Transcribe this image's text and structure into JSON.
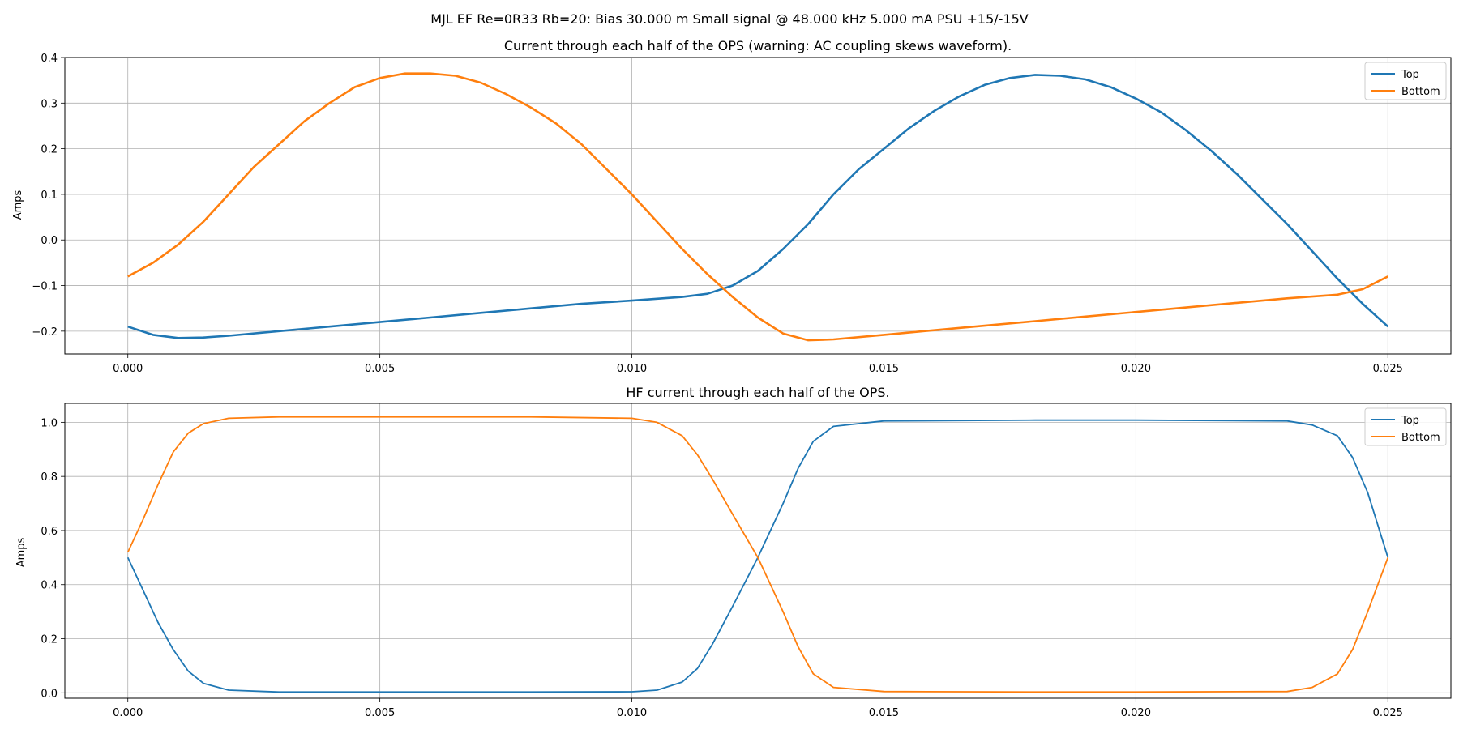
{
  "figure": {
    "suptitle": "MJL EF Re=0R33 Rb=20: Bias 30.000 m Small signal @ 48.000 kHz 5.000 mA PSU +15/-15V"
  },
  "chart_data": [
    {
      "type": "line",
      "title": "Current through each half of the OPS (warning: AC coupling skews waveform).",
      "xlabel": "",
      "ylabel": "Amps",
      "xlim": [
        -0.00125,
        0.02625
      ],
      "ylim": [
        -0.25,
        0.4
      ],
      "xticks": [
        "0.000",
        "0.005",
        "0.010",
        "0.015",
        "0.020",
        "0.025"
      ],
      "yticks": [
        "−0.2",
        "−0.1",
        "0.0",
        "0.1",
        "0.2",
        "0.3",
        "0.4"
      ],
      "grid": true,
      "legend": "top-right",
      "series": [
        {
          "name": "Top",
          "color": "#1f77b4",
          "x": [
            0.0,
            0.0005,
            0.001,
            0.0015,
            0.002,
            0.003,
            0.004,
            0.005,
            0.006,
            0.007,
            0.008,
            0.009,
            0.01,
            0.011,
            0.0115,
            0.012,
            0.0125,
            0.013,
            0.0135,
            0.014,
            0.0145,
            0.015,
            0.0155,
            0.016,
            0.0165,
            0.017,
            0.0175,
            0.018,
            0.0185,
            0.019,
            0.0195,
            0.02,
            0.0205,
            0.021,
            0.0215,
            0.022,
            0.0225,
            0.023,
            0.0235,
            0.024,
            0.0245,
            0.025
          ],
          "y": [
            -0.19,
            -0.208,
            -0.215,
            -0.214,
            -0.21,
            -0.2,
            -0.19,
            -0.18,
            -0.17,
            -0.16,
            -0.15,
            -0.14,
            -0.133,
            -0.125,
            -0.118,
            -0.1,
            -0.068,
            -0.02,
            0.035,
            0.1,
            0.155,
            0.2,
            0.245,
            0.283,
            0.315,
            0.34,
            0.355,
            0.362,
            0.36,
            0.352,
            0.335,
            0.31,
            0.28,
            0.24,
            0.195,
            0.145,
            0.09,
            0.035,
            -0.025,
            -0.085,
            -0.14,
            -0.19
          ]
        },
        {
          "name": "Bottom",
          "color": "#ff7f0e",
          "x": [
            0.0,
            0.0005,
            0.001,
            0.0015,
            0.002,
            0.0025,
            0.003,
            0.0035,
            0.004,
            0.0045,
            0.005,
            0.0055,
            0.006,
            0.0065,
            0.007,
            0.0075,
            0.008,
            0.0085,
            0.009,
            0.0095,
            0.01,
            0.0105,
            0.011,
            0.0115,
            0.012,
            0.0125,
            0.013,
            0.0135,
            0.014,
            0.015,
            0.016,
            0.017,
            0.018,
            0.019,
            0.02,
            0.021,
            0.022,
            0.023,
            0.024,
            0.0245,
            0.025
          ],
          "y": [
            -0.08,
            -0.05,
            -0.01,
            0.04,
            0.1,
            0.16,
            0.21,
            0.26,
            0.3,
            0.335,
            0.355,
            0.365,
            0.365,
            0.36,
            0.345,
            0.32,
            0.29,
            0.255,
            0.21,
            0.155,
            0.1,
            0.04,
            -0.02,
            -0.075,
            -0.125,
            -0.17,
            -0.205,
            -0.22,
            -0.218,
            -0.208,
            -0.198,
            -0.188,
            -0.178,
            -0.168,
            -0.158,
            -0.148,
            -0.138,
            -0.128,
            -0.12,
            -0.108,
            -0.08
          ]
        }
      ]
    },
    {
      "type": "line",
      "title": "HF current through each half of the OPS.",
      "xlabel": "",
      "ylabel": "Amps",
      "xlim": [
        -0.00125,
        0.02625
      ],
      "ylim": [
        -0.02,
        1.07
      ],
      "xticks": [
        "0.000",
        "0.005",
        "0.010",
        "0.015",
        "0.020",
        "0.025"
      ],
      "yticks": [
        "0.0",
        "0.2",
        "0.4",
        "0.6",
        "0.8",
        "1.0"
      ],
      "grid": true,
      "legend": "top-right",
      "series": [
        {
          "name": "Top",
          "color": "#1f77b4",
          "x": [
            0.0,
            0.0003,
            0.0006,
            0.0009,
            0.0012,
            0.0015,
            0.002,
            0.003,
            0.005,
            0.008,
            0.01,
            0.0105,
            0.011,
            0.0113,
            0.0116,
            0.012,
            0.0125,
            0.013,
            0.0133,
            0.0136,
            0.014,
            0.015,
            0.018,
            0.02,
            0.023,
            0.0235,
            0.024,
            0.0243,
            0.0246,
            0.025
          ],
          "y": [
            0.5,
            0.38,
            0.26,
            0.16,
            0.08,
            0.035,
            0.01,
            0.003,
            0.003,
            0.003,
            0.004,
            0.01,
            0.04,
            0.09,
            0.18,
            0.32,
            0.5,
            0.7,
            0.83,
            0.93,
            0.985,
            1.005,
            1.008,
            1.008,
            1.005,
            0.99,
            0.95,
            0.87,
            0.74,
            0.5
          ]
        },
        {
          "name": "Bottom",
          "color": "#ff7f0e",
          "x": [
            0.0,
            0.0003,
            0.0006,
            0.0009,
            0.0012,
            0.0015,
            0.002,
            0.003,
            0.005,
            0.008,
            0.01,
            0.0105,
            0.011,
            0.0113,
            0.0116,
            0.012,
            0.0125,
            0.013,
            0.0133,
            0.0136,
            0.014,
            0.015,
            0.018,
            0.02,
            0.023,
            0.0235,
            0.024,
            0.0243,
            0.0246,
            0.025
          ],
          "y": [
            0.52,
            0.64,
            0.77,
            0.89,
            0.96,
            0.995,
            1.015,
            1.02,
            1.02,
            1.02,
            1.015,
            1.0,
            0.95,
            0.88,
            0.79,
            0.66,
            0.5,
            0.3,
            0.17,
            0.07,
            0.02,
            0.005,
            0.003,
            0.003,
            0.005,
            0.02,
            0.07,
            0.16,
            0.3,
            0.5
          ]
        }
      ]
    }
  ]
}
